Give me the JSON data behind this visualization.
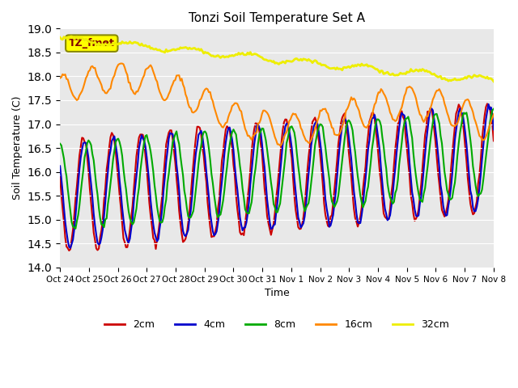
{
  "title": "Tonzi Soil Temperature Set A",
  "ylabel": "Soil Temperature (C)",
  "xlabel": "Time",
  "ylim": [
    14.0,
    19.0
  ],
  "yticks": [
    14.0,
    14.5,
    15.0,
    15.5,
    16.0,
    16.5,
    17.0,
    17.5,
    18.0,
    18.5,
    19.0
  ],
  "bg_color": "#e8e8e8",
  "label_box_text": "TZ_fmet",
  "label_box_color": "#ffff00",
  "label_box_text_color": "#800000",
  "lines": {
    "2cm": {
      "color": "#cc0000",
      "lw": 1.5
    },
    "4cm": {
      "color": "#0000cc",
      "lw": 1.5
    },
    "8cm": {
      "color": "#00aa00",
      "lw": 1.5
    },
    "16cm": {
      "color": "#ff8800",
      "lw": 1.5
    },
    "32cm": {
      "color": "#eeee00",
      "lw": 2.0
    }
  },
  "xtick_labels": [
    "Oct 24",
    "Oct 25",
    "Oct 26",
    "Oct 27",
    "Oct 28",
    "Oct 29",
    "Oct 30",
    "Oct 31",
    "Nov 1",
    "Nov 2",
    "Nov 3",
    "Nov 4",
    "Nov 5",
    "Nov 6",
    "Nov 7",
    "Nov 8"
  ],
  "n_points": 336
}
